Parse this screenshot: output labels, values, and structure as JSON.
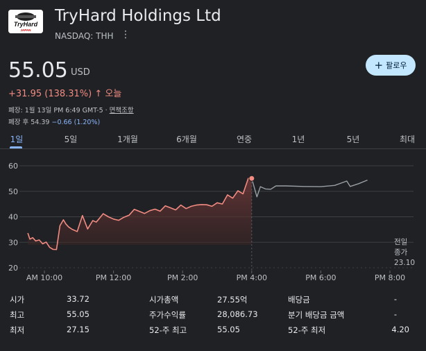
{
  "company": {
    "logo_text": "TryHard",
    "logo_subtext": "JAPAN",
    "name": "TryHard Holdings Ltd",
    "exchange": "NASDAQ: THH"
  },
  "quote": {
    "price": "55.05",
    "currency": "USD",
    "change": "+31.95 (138.31%)",
    "change_arrow": "↑",
    "change_period": "오늘",
    "close_info": "폐장: 1월 13일 PM 6:49 GMT-5 · ",
    "disclaimer_link": "면책조항",
    "after_hours_label": "폐장 후 54.39 ",
    "after_hours_change": "−0.66 (1.20%)"
  },
  "follow_button": {
    "icon": "plus-icon",
    "label": "팔로우"
  },
  "tabs": [
    {
      "label": "1일",
      "active": true
    },
    {
      "label": "5일",
      "active": false
    },
    {
      "label": "1개월",
      "active": false
    },
    {
      "label": "6개월",
      "active": false
    },
    {
      "label": "연중",
      "active": false
    },
    {
      "label": "1년",
      "active": false
    },
    {
      "label": "5년",
      "active": false
    },
    {
      "label": "최대",
      "active": false
    }
  ],
  "chart_data": {
    "type": "line",
    "xlabel": "",
    "ylabel": "",
    "x_ticks": [
      "AM 10:00",
      "PM 12:00",
      "PM 2:00",
      "PM 4:00",
      "PM 6:00",
      "PM 8:00"
    ],
    "y_ticks": [
      20,
      30,
      40,
      50,
      60
    ],
    "ylim": [
      18,
      62
    ],
    "xlim": [
      9.5,
      20.0
    ],
    "grid": true,
    "previous_close": {
      "label_line1": "전일",
      "label_line2": "종가",
      "value": "23.10"
    },
    "colors": {
      "up": "#f28b82",
      "after_hours": "#9aa0a6",
      "fill": "#5c2b2b"
    },
    "series": [
      {
        "session": "regular",
        "x": [
          9.52,
          9.58,
          9.66,
          9.75,
          9.85,
          9.95,
          10.05,
          10.15,
          10.25,
          10.35,
          10.45,
          10.55,
          10.62,
          10.7,
          10.8,
          10.95,
          11.1,
          11.25,
          11.4,
          11.5,
          11.6,
          11.7,
          11.85,
          12.0,
          12.15,
          12.3,
          12.45,
          12.6,
          12.75,
          12.9,
          13.05,
          13.2,
          13.35,
          13.5,
          13.65,
          13.8,
          13.95,
          14.1,
          14.25,
          14.4,
          14.55,
          14.7,
          14.85,
          15.0,
          15.15,
          15.3,
          15.45,
          15.6,
          15.75,
          15.9,
          16.0
        ],
        "y": [
          33.6,
          31.2,
          31.8,
          30.5,
          30.9,
          29.4,
          30.1,
          28.0,
          27.2,
          27.15,
          36.5,
          38.8,
          37.2,
          36.0,
          35.1,
          34.2,
          40.5,
          35.2,
          38.5,
          37.9,
          39.5,
          41.2,
          40.0,
          39.1,
          38.6,
          39.8,
          40.6,
          42.9,
          42.1,
          41.3,
          42.4,
          43.0,
          42.2,
          44.3,
          43.5,
          42.7,
          44.6,
          43.2,
          44.1,
          44.6,
          44.8,
          44.7,
          44.1,
          45.5,
          45.0,
          48.6,
          47.3,
          50.2,
          49.0,
          55.05,
          55.05
        ]
      },
      {
        "session": "after_hours",
        "x": [
          16.0,
          16.15,
          16.25,
          16.4,
          16.55,
          16.7,
          17.0,
          17.5,
          18.0,
          18.4,
          18.75,
          18.85,
          19.1,
          19.35
        ],
        "y": [
          55.05,
          47.8,
          51.8,
          50.9,
          50.8,
          52.1,
          52.1,
          51.9,
          51.8,
          52.3,
          54.0,
          51.9,
          53.0,
          54.39
        ]
      }
    ],
    "last_regular_point": {
      "x": 16.0,
      "y": 55.05
    }
  },
  "stats": [
    [
      {
        "label": "시가",
        "value": "33.72"
      },
      {
        "label": "시가총액",
        "value": "27.55억"
      },
      {
        "label": "배당금",
        "value": "-"
      }
    ],
    [
      {
        "label": "최고",
        "value": "55.05"
      },
      {
        "label": "주가수익률",
        "value": "28,086.73"
      },
      {
        "label": "분기 배당금 금액",
        "value": "-"
      }
    ],
    [
      {
        "label": "최저",
        "value": "27.15"
      },
      {
        "label": "52-주 최고",
        "value": "55.05"
      },
      {
        "label": "52-주 최저",
        "value": "4.20"
      }
    ]
  ]
}
